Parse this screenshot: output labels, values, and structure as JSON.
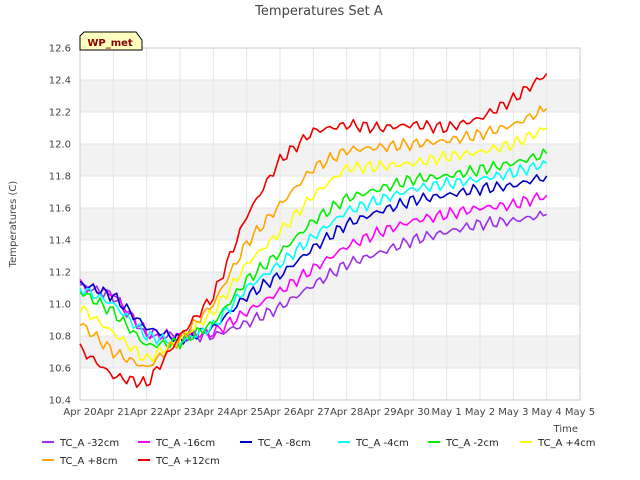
{
  "chart_data": {
    "type": "line",
    "title": "Temperatures Set A",
    "xlabel": "Time",
    "ylabel": "Temperatures (C)",
    "badge": "WP_met",
    "x_ticks": [
      "Apr 20",
      "Apr 21",
      "Apr 22",
      "Apr 23",
      "Apr 24",
      "Apr 25",
      "Apr 26",
      "Apr 27",
      "Apr 28",
      "Apr 29",
      "Apr 30",
      "May 1",
      "May 2",
      "May 3",
      "May 4",
      "May 5"
    ],
    "y_ticks": [
      "10.4",
      "10.6",
      "10.8",
      "11.0",
      "11.2",
      "11.4",
      "11.6",
      "11.8",
      "12.0",
      "12.2",
      "12.4",
      "12.6"
    ],
    "ylim": [
      10.4,
      12.6
    ],
    "x_dates": [
      "Apr 20",
      "Apr 21",
      "Apr 22",
      "Apr 23",
      "Apr 24",
      "Apr 25",
      "Apr 26",
      "Apr 27",
      "Apr 28",
      "Apr 29",
      "Apr 30",
      "May 1",
      "May 2",
      "May 3",
      "May 4"
    ],
    "grid": true,
    "legend_position": "bottom",
    "background_bands": "alternating light gray",
    "series": [
      {
        "name": "TC_A -32cm",
        "color": "#9b30e8",
        "values": [
          11.12,
          11.05,
          10.8,
          10.8,
          10.8,
          10.88,
          10.98,
          11.12,
          11.25,
          11.32,
          11.4,
          11.45,
          11.5,
          11.52,
          11.56
        ]
      },
      {
        "name": "TC_A -16cm",
        "color": "#ff00ff",
        "values": [
          11.12,
          11.06,
          10.82,
          10.8,
          10.82,
          10.95,
          11.08,
          11.22,
          11.36,
          11.45,
          11.52,
          11.56,
          11.6,
          11.62,
          11.68
        ]
      },
      {
        "name": "TC_A -8cm",
        "color": "#0000cd",
        "values": [
          11.13,
          11.05,
          10.85,
          10.78,
          10.85,
          11.05,
          11.18,
          11.35,
          11.5,
          11.58,
          11.65,
          11.68,
          11.72,
          11.74,
          11.8
        ]
      },
      {
        "name": "TC_A -4cm",
        "color": "#00ffff",
        "values": [
          11.1,
          11.0,
          10.8,
          10.76,
          10.86,
          11.1,
          11.25,
          11.42,
          11.58,
          11.65,
          11.72,
          11.75,
          11.78,
          11.82,
          11.88
        ]
      },
      {
        "name": "TC_A -2cm",
        "color": "#00ee00",
        "values": [
          11.08,
          10.95,
          10.74,
          10.76,
          10.88,
          11.15,
          11.32,
          11.52,
          11.66,
          11.72,
          11.78,
          11.8,
          11.84,
          11.88,
          11.94
        ]
      },
      {
        "name": "TC_A +4cm",
        "color": "#ffff00",
        "values": [
          10.98,
          10.82,
          10.65,
          10.78,
          10.95,
          11.25,
          11.45,
          11.68,
          11.85,
          11.86,
          11.88,
          11.92,
          11.95,
          12.0,
          12.1
        ]
      },
      {
        "name": "TC_A +8cm",
        "color": "#ffa500",
        "values": [
          10.88,
          10.7,
          10.6,
          10.78,
          11.0,
          11.38,
          11.62,
          11.85,
          11.96,
          11.98,
          12.0,
          12.02,
          12.06,
          12.12,
          12.22
        ]
      },
      {
        "name": "TC_A +12cm",
        "color": "#ee0000",
        "values": [
          10.72,
          10.55,
          10.5,
          10.8,
          11.05,
          11.55,
          11.9,
          12.08,
          12.12,
          12.1,
          12.12,
          12.1,
          12.16,
          12.28,
          12.44
        ]
      }
    ]
  }
}
